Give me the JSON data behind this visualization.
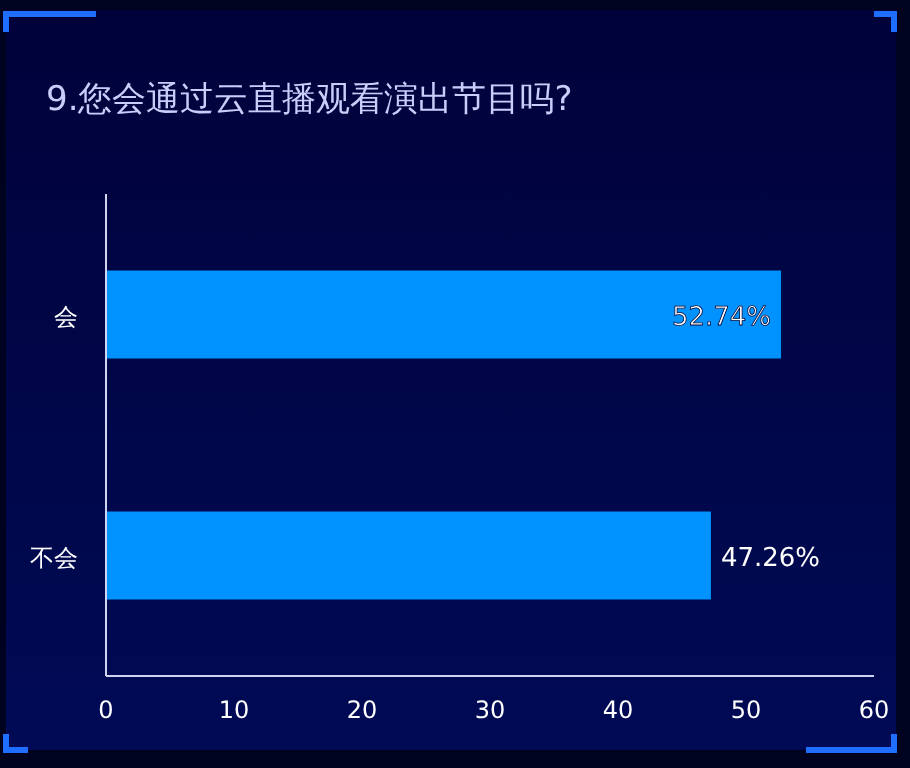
{
  "chart_data": {
    "type": "bar",
    "orientation": "horizontal",
    "title": "9.您会通过云直播观看演出节目吗?",
    "categories": [
      "会",
      "不会"
    ],
    "values": [
      52.74,
      47.26
    ],
    "value_labels": [
      "52.74%",
      "47.26%"
    ],
    "color": "#0093ff",
    "xlim": [
      0,
      60
    ],
    "xticks": [
      0,
      10,
      20,
      30,
      40,
      50,
      60
    ],
    "grid": false
  }
}
